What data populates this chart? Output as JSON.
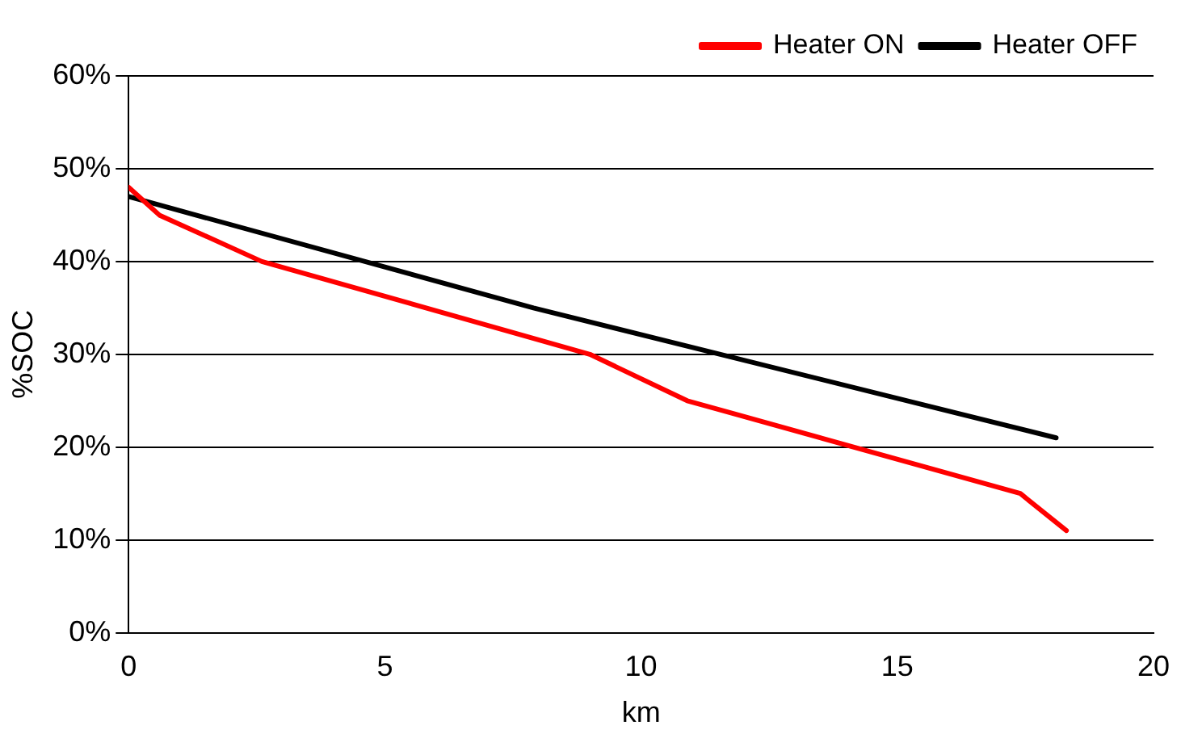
{
  "chart_data": {
    "type": "line",
    "xlabel": "km",
    "ylabel": "%SOC",
    "xlim": [
      0,
      20
    ],
    "xticks": [
      0,
      5,
      10,
      15,
      20
    ],
    "ylim": [
      0,
      60
    ],
    "yticks": [
      {
        "value": 0,
        "label": "0%"
      },
      {
        "value": 10,
        "label": "10%"
      },
      {
        "value": 20,
        "label": "20%"
      },
      {
        "value": 30,
        "label": "30%"
      },
      {
        "value": 40,
        "label": "40%"
      },
      {
        "value": 50,
        "label": "50%"
      },
      {
        "value": 60,
        "label": "60%"
      }
    ],
    "grid": "y",
    "legend": "top right",
    "marker": "none",
    "line_style": "solid",
    "series": [
      {
        "name": "Heater ON",
        "color": "#ff0000",
        "x": [
          0,
          0.6,
          2.6,
          9,
          10.9,
          17.4,
          18.3
        ],
        "values": [
          48,
          45,
          40,
          30,
          25,
          15,
          11
        ]
      },
      {
        "name": "Heater OFF",
        "color": "#000000",
        "x": [
          0,
          7.9,
          18.1
        ],
        "values": [
          47,
          35,
          21
        ]
      }
    ]
  }
}
